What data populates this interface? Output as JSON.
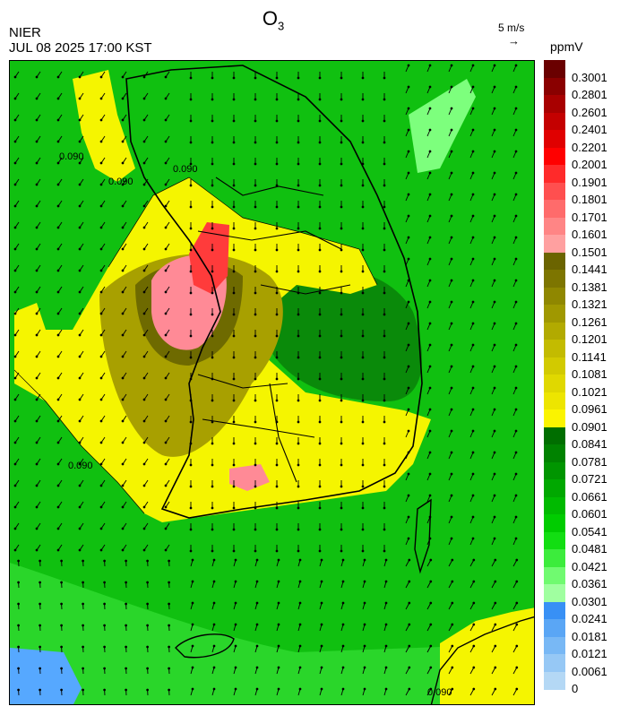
{
  "header": {
    "title_main": "O",
    "title_sub": "3",
    "agency": "NIER",
    "timestamp": "JUL 08 2025 17:00 KST",
    "wind_reference": "5 m/s",
    "wind_arrow_glyph": "→",
    "unit": "ppmV"
  },
  "map": {
    "contour_labels": [
      "0.090",
      "0.090",
      "0.090",
      "0.090",
      "0.090"
    ],
    "colors": {
      "low_green": "#7dff7d",
      "mid_green": "#2ad62a",
      "green": "#10c010",
      "dark_green": "#0a8a0a",
      "yellow": "#f5f500",
      "olive": "#a8a000",
      "dark_olive": "#6e6a00",
      "pink": "#ff8a96",
      "red": "#ff3b3b",
      "blue": "#56a8ff"
    }
  },
  "colorbar": {
    "labels": [
      "0.3001",
      "0.2801",
      "0.2601",
      "0.2401",
      "0.2201",
      "0.2001",
      "0.1901",
      "0.1801",
      "0.1701",
      "0.1601",
      "0.1501",
      "0.1441",
      "0.1381",
      "0.1321",
      "0.1261",
      "0.1201",
      "0.1141",
      "0.1081",
      "0.1021",
      "0.0961",
      "0.0901",
      "0.0841",
      "0.0781",
      "0.0721",
      "0.0661",
      "0.0601",
      "0.0541",
      "0.0481",
      "0.0421",
      "0.0361",
      "0.0301",
      "0.0241",
      "0.0181",
      "0.0121",
      "0.0061",
      "0"
    ],
    "colors": [
      "#6a0000",
      "#8a0000",
      "#a80000",
      "#c40000",
      "#e00000",
      "#ff0000",
      "#ff2a2a",
      "#ff4f4f",
      "#ff6b6b",
      "#ff8585",
      "#ffa0a0",
      "#6b6400",
      "#7d7500",
      "#8f8700",
      "#a09800",
      "#b2aa00",
      "#c3bb00",
      "#d2ca00",
      "#e0d800",
      "#ede500",
      "#fbf400",
      "#006e00",
      "#008200",
      "#009500",
      "#00a800",
      "#00ba00",
      "#00cc00",
      "#12de12",
      "#3cec3c",
      "#70fa70",
      "#a0ffa0",
      "#3890f5",
      "#5aa6f5",
      "#78b8f5",
      "#96c8f5",
      "#b4d8f5"
    ]
  }
}
